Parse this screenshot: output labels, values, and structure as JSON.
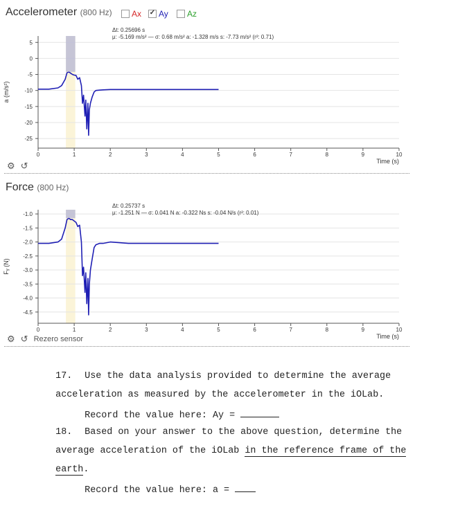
{
  "panels": [
    {
      "title": "Accelerometer",
      "rate": "(800 Hz)",
      "checkboxes": [
        {
          "label": "Ax",
          "checked": false,
          "color": "#d62728"
        },
        {
          "label": "Ay",
          "checked": true,
          "color": "#1f1fb4"
        },
        {
          "label": "Az",
          "checked": false,
          "color": "#2ca02c"
        }
      ],
      "tools": {
        "gear": "gear-icon",
        "reset": "reset-icon"
      },
      "chart_data": {
        "type": "line",
        "ylabel": "a (m/s²)",
        "xlabel": "Time (s)",
        "xlim": [
          0,
          10
        ],
        "ylim": [
          -28,
          7
        ],
        "xticks": [
          "0",
          "1",
          "2",
          "3",
          "4",
          "5",
          "6",
          "7",
          "8",
          "9",
          "10"
        ],
        "yticks": [
          "5",
          "0",
          "-5",
          "-10",
          "-15",
          "-20",
          "-25"
        ],
        "ytick_values": [
          5,
          0,
          -5,
          -10,
          -15,
          -20,
          -25
        ],
        "selection": [
          0.77,
          1.03
        ],
        "series": [
          {
            "color": "#1f1fb4",
            "x": [
              0,
              0.3,
              0.55,
              0.65,
              0.75,
              0.8,
              0.85,
              0.9,
              0.95,
              1.0,
              1.05,
              1.1,
              1.15,
              1.2,
              1.23,
              1.26,
              1.3,
              1.32,
              1.35,
              1.38,
              1.4,
              1.42,
              1.45,
              1.5,
              1.55,
              1.6,
              1.7,
              1.8,
              2.0,
              2.5,
              3.0,
              3.5,
              4.0,
              4.5,
              5.0
            ],
            "y": [
              -9.6,
              -9.6,
              -9.2,
              -8.5,
              -6.5,
              -4.5,
              -4.2,
              -4.6,
              -5.0,
              -5.2,
              -5.3,
              -6.5,
              -6.0,
              -8.5,
              -14.0,
              -11.5,
              -18.0,
              -13.0,
              -22.0,
              -14.0,
              -24.0,
              -16.0,
              -14.0,
              -12.0,
              -10.5,
              -10.0,
              -9.9,
              -9.8,
              -9.7,
              -9.7,
              -9.7,
              -9.7,
              -9.7,
              -9.7,
              -9.7
            ]
          }
        ],
        "annotation": {
          "line1": "Δt: 0.25696 s",
          "line2": "μ: -5.169 m/s² — σ: 0.68 m/s²  a: -1.328 m/s  s: -7.73 m/s² (r²: 0.71)"
        }
      }
    },
    {
      "title": "Force",
      "rate": "(800 Hz)",
      "checkboxes": [],
      "tools": {
        "gear": "gear-icon",
        "reset": "reset-icon",
        "rezero": "Rezero sensor"
      },
      "chart_data": {
        "type": "line",
        "ylabel": "Fᵧ (N)",
        "xlabel": "Time (s)",
        "xlim": [
          0,
          10
        ],
        "ylim": [
          -4.9,
          -0.85
        ],
        "xticks": [
          "0",
          "1",
          "2",
          "3",
          "4",
          "5",
          "6",
          "7",
          "8",
          "9",
          "10"
        ],
        "yticks": [
          "-1.0",
          "-1.5",
          "-2.0",
          "-2.5",
          "-3.0",
          "-3.5",
          "-4.0",
          "-4.5"
        ],
        "ytick_values": [
          -1.0,
          -1.5,
          -2.0,
          -2.5,
          -3.0,
          -3.5,
          -4.0,
          -4.5
        ],
        "selection": [
          0.77,
          1.03
        ],
        "series": [
          {
            "color": "#1f1fb4",
            "x": [
              0,
              0.3,
              0.55,
              0.65,
              0.75,
              0.8,
              0.85,
              0.9,
              0.95,
              1.0,
              1.05,
              1.1,
              1.15,
              1.2,
              1.23,
              1.26,
              1.3,
              1.32,
              1.35,
              1.38,
              1.4,
              1.42,
              1.45,
              1.5,
              1.55,
              1.6,
              1.7,
              1.8,
              2.0,
              2.5,
              3.0,
              3.5,
              4.0,
              4.5,
              5.0
            ],
            "y": [
              -2.05,
              -2.05,
              -2.0,
              -1.9,
              -1.5,
              -1.2,
              -1.15,
              -1.2,
              -1.2,
              -1.25,
              -1.3,
              -1.45,
              -1.4,
              -2.0,
              -3.2,
              -2.9,
              -3.8,
              -3.1,
              -4.2,
              -3.3,
              -4.6,
              -3.5,
              -3.0,
              -2.6,
              -2.2,
              -2.1,
              -2.05,
              -2.05,
              -2.0,
              -2.05,
              -2.05,
              -2.05,
              -2.05,
              -2.05,
              -2.05
            ]
          }
        ],
        "annotation": {
          "line1": "Δt: 0.25737 s",
          "line2": "μ: -1.251 N — σ: 0.041 N  a: -0.322 Ns  s: -0.04 N/s (r²: 0.01)"
        }
      }
    }
  ],
  "questions": [
    {
      "number": "17.",
      "line1": "Use the data analysis provided to determine the average",
      "line2": "acceleration as measured by the accelerometer in the iOLab.",
      "record": "Record the value here: Ay = "
    },
    {
      "number": "18.",
      "line1": "Based on your answer to the above question, determine the",
      "line2a": "average acceleration of the iOLab ",
      "line2b": "in the reference frame of the",
      "line3": "earth",
      "line3end": ".",
      "record": "Record the value here: a = "
    }
  ]
}
